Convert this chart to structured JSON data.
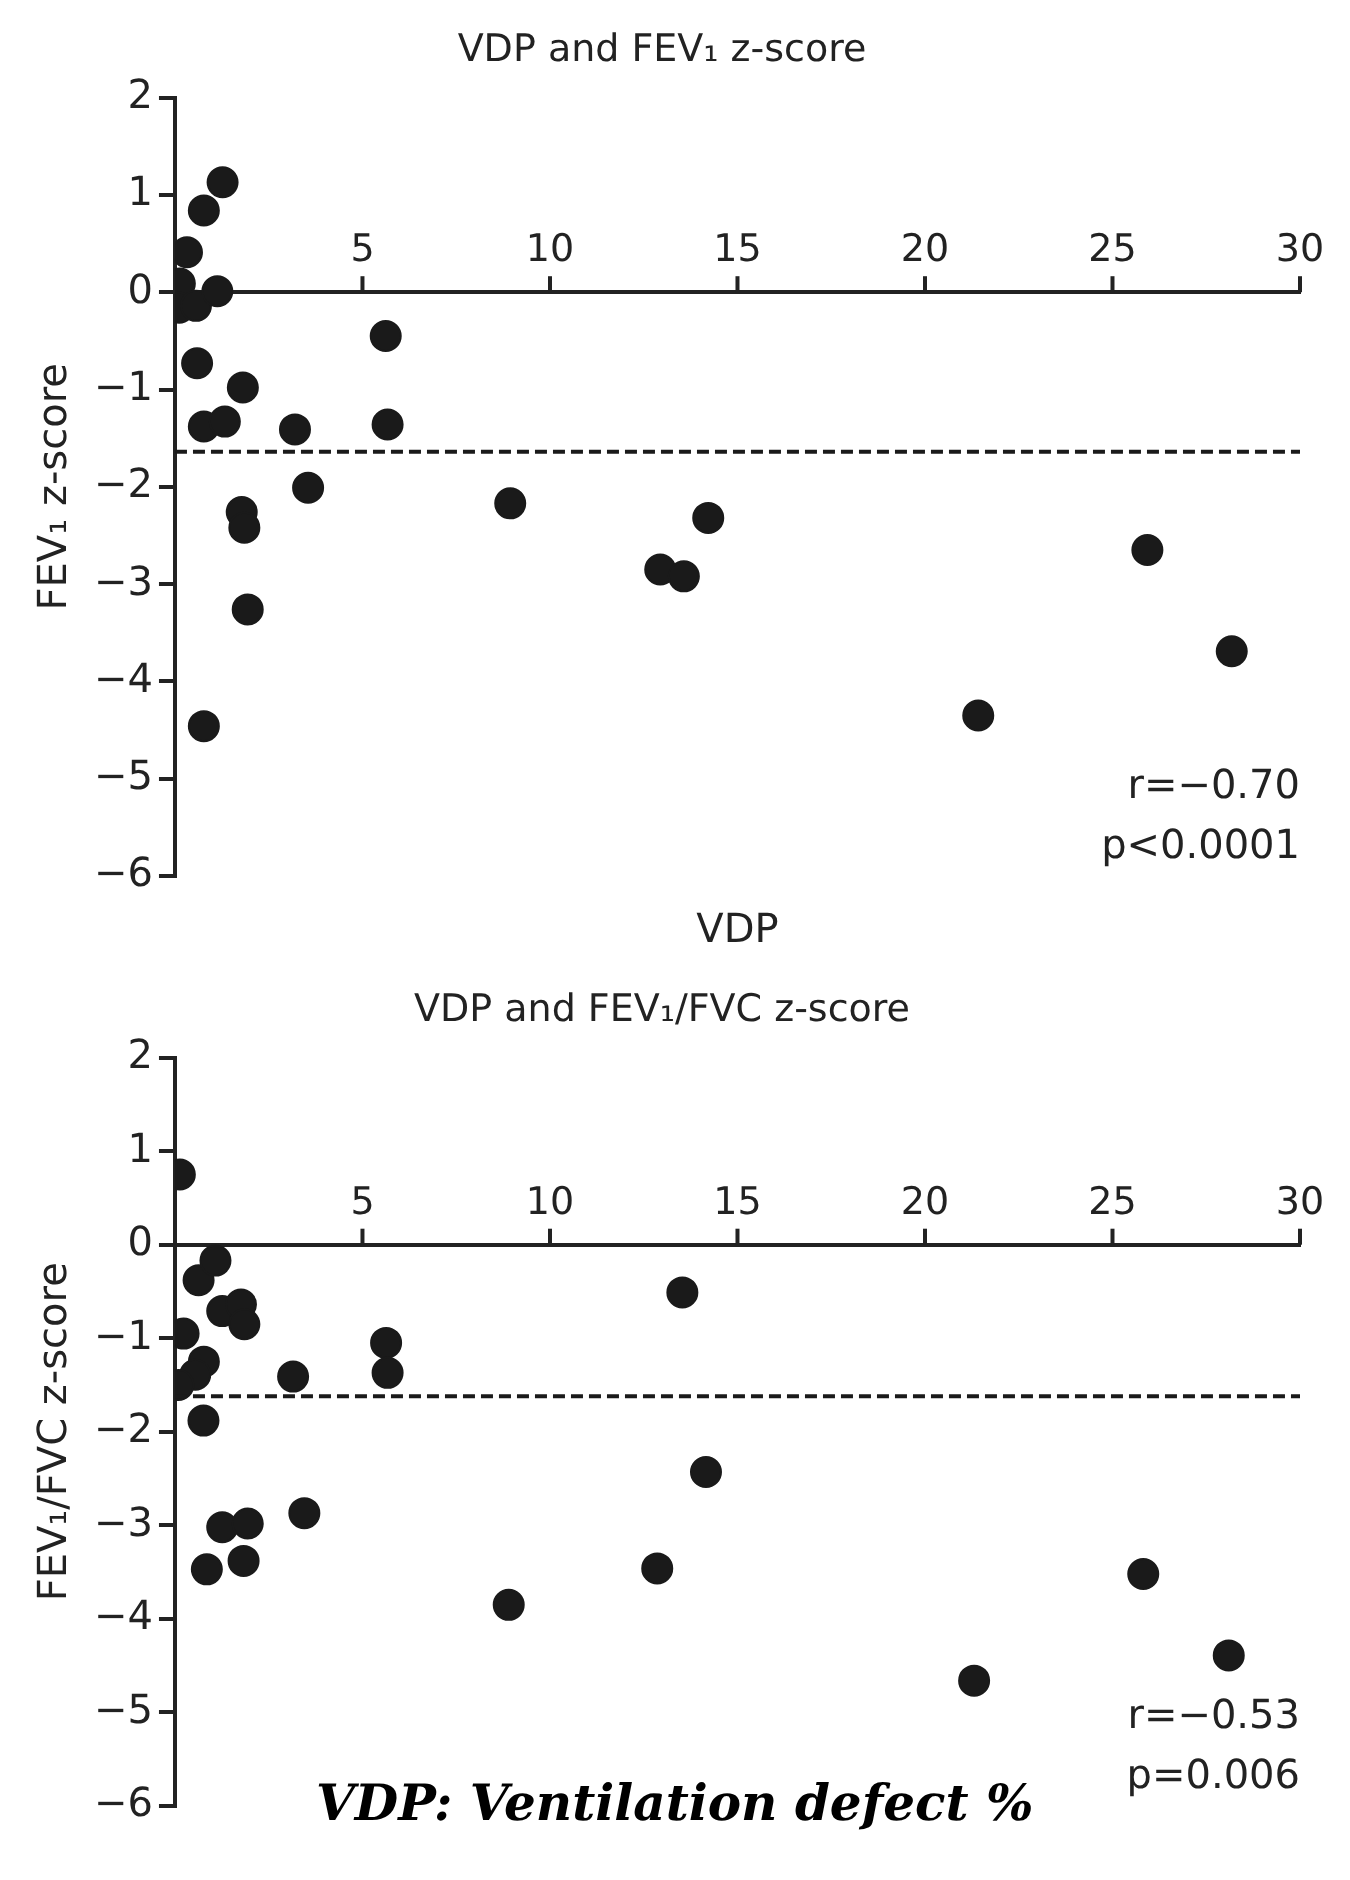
{
  "chart_data": [
    {
      "type": "scatter",
      "title": "VDP and FEV₁ z-score",
      "xlabel": "VDP",
      "ylabel": "FEV₁ z-score",
      "xlim": [
        0,
        30
      ],
      "xticks": [
        5,
        10,
        15,
        20,
        25,
        30
      ],
      "ylim": [
        -6,
        2
      ],
      "yticks": [
        {
          "value": -6,
          "label": "−6"
        },
        {
          "value": -5,
          "label": "−5"
        },
        {
          "value": -4,
          "label": "−4"
        },
        {
          "value": -3,
          "label": "−3"
        },
        {
          "value": -2,
          "label": "−2"
        },
        {
          "value": -1,
          "label": "−1"
        },
        0,
        1,
        2
      ],
      "grid": false,
      "marker": "circle",
      "legend": false,
      "series": [
        {
          "color": "#1a1a1a",
          "x": [
            1.27,
            0.77,
            0.32,
            0.13,
            0.11,
            0.56,
            1.13,
            0.59,
            1.81,
            0.77,
            1.33,
            3.2,
            5.62,
            5.67,
            3.55,
            1.78,
            1.85,
            1.94,
            0.77,
            8.94,
            14.22,
            12.94,
            13.57,
            25.93,
            28.18,
            21.42
          ],
          "values": [
            1.13,
            0.84,
            0.41,
            0.09,
            -0.16,
            -0.14,
            0.01,
            -0.73,
            -0.98,
            -1.38,
            -1.33,
            -1.41,
            -0.45,
            -1.36,
            -2.01,
            -2.26,
            -2.42,
            -3.26,
            -4.46,
            -2.17,
            -2.32,
            -2.85,
            -2.92,
            -2.65,
            -3.69,
            -4.35
          ]
        }
      ],
      "ref_lines": [
        {
          "axis": "y",
          "value": -1.64,
          "line_style": "dashed",
          "color": "#1a1a1a"
        }
      ],
      "annotations": [
        "r=−0.70",
        "p<0.0001"
      ]
    },
    {
      "type": "scatter",
      "title": "VDP and FEV₁/FVC z-score",
      "ylabel": "FEV₁/FVC z-score",
      "xlim": [
        0,
        30
      ],
      "xticks": [
        5,
        10,
        15,
        20,
        25,
        30
      ],
      "ylim": [
        -6,
        2
      ],
      "yticks": [
        {
          "value": -6,
          "label": "−6"
        },
        {
          "value": -5,
          "label": "−5"
        },
        {
          "value": -4,
          "label": "−4"
        },
        {
          "value": -3,
          "label": "−3"
        },
        {
          "value": -2,
          "label": "−2"
        },
        {
          "value": -1,
          "label": "−1"
        },
        0,
        1,
        2
      ],
      "grid": false,
      "marker": "circle",
      "legend": false,
      "series": [
        {
          "color": "#1a1a1a",
          "x": [
            0.13,
            0.63,
            1.08,
            1.26,
            1.76,
            1.85,
            0.23,
            0.77,
            0.54,
            0.09,
            0.76,
            3.15,
            5.63,
            5.67,
            3.45,
            1.26,
            1.94,
            0.85,
            1.83,
            13.53,
            14.16,
            12.86,
            8.9,
            25.82,
            28.1,
            21.31
          ],
          "values": [
            0.75,
            -0.38,
            -0.17,
            -0.71,
            -0.64,
            -0.85,
            -0.95,
            -1.25,
            -1.39,
            -1.5,
            -1.88,
            -1.41,
            -1.05,
            -1.37,
            -2.87,
            -3.02,
            -2.98,
            -3.47,
            -3.38,
            -0.51,
            -2.43,
            -3.46,
            -3.85,
            -3.52,
            -4.39,
            -4.66
          ]
        }
      ],
      "ref_lines": [
        {
          "axis": "y",
          "value": -1.62,
          "line_style": "dashed",
          "color": "#1a1a1a"
        }
      ],
      "annotations": [
        "r=−0.53",
        "p=0.006",
        "VDP: Ventilation defect %"
      ]
    }
  ]
}
